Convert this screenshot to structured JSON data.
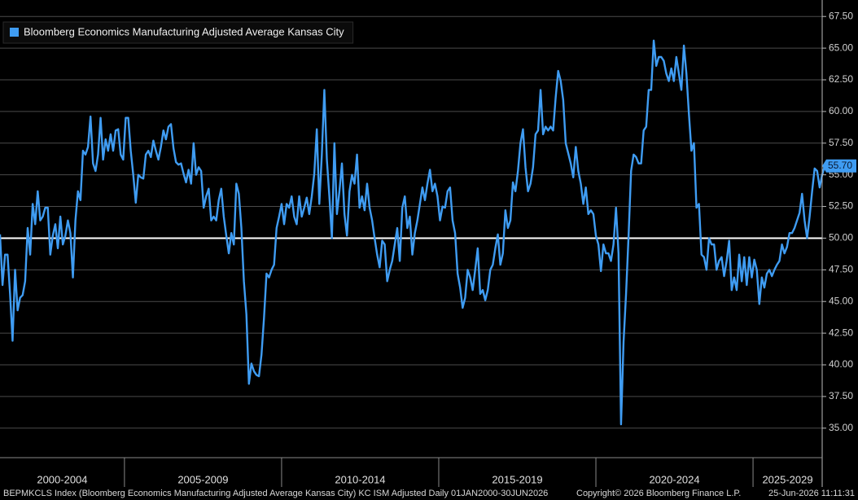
{
  "chart_data": {
    "type": "line",
    "series": [
      {
        "name": "Bloomberg Economics Manufacturing Adjusted Average Kansas City",
        "color": "#3f9cf2",
        "last_value_label": "55.70",
        "x": [
          2001.04,
          2001.12,
          2001.2,
          2001.28,
          2001.36,
          2001.44,
          2001.52,
          2001.6,
          2001.68,
          2001.76,
          2001.84,
          2001.92,
          2002,
          2002.08,
          2002.16,
          2002.24,
          2002.32,
          2002.4,
          2002.48,
          2002.56,
          2002.64,
          2002.72,
          2002.8,
          2002.88,
          2002.96,
          2003.04,
          2003.12,
          2003.2,
          2003.28,
          2003.36,
          2003.44,
          2003.52,
          2003.6,
          2003.68,
          2003.76,
          2003.84,
          2003.92,
          2004,
          2004.08,
          2004.16,
          2004.24,
          2004.32,
          2004.4,
          2004.48,
          2004.56,
          2004.64,
          2004.72,
          2004.8,
          2004.88,
          2004.96,
          2005.04,
          2005.12,
          2005.2,
          2005.28,
          2005.36,
          2005.44,
          2005.52,
          2005.6,
          2005.68,
          2005.76,
          2005.84,
          2005.92,
          2006,
          2006.08,
          2006.16,
          2006.24,
          2006.32,
          2006.4,
          2006.48,
          2006.56,
          2006.64,
          2006.72,
          2006.8,
          2006.88,
          2006.96,
          2007.04,
          2007.12,
          2007.2,
          2007.28,
          2007.36,
          2007.44,
          2007.52,
          2007.6,
          2007.68,
          2007.76,
          2007.84,
          2007.92,
          2008,
          2008.08,
          2008.16,
          2008.24,
          2008.32,
          2008.4,
          2008.48,
          2008.56,
          2008.64,
          2008.72,
          2008.8,
          2008.88,
          2008.96,
          2009.04,
          2009.12,
          2009.2,
          2009.28,
          2009.36,
          2009.44,
          2009.52,
          2009.6,
          2009.68,
          2009.76,
          2009.84,
          2009.92,
          2010,
          2010.08,
          2010.16,
          2010.24,
          2010.32,
          2010.4,
          2010.48,
          2010.56,
          2010.64,
          2010.72,
          2010.8,
          2010.88,
          2010.96,
          2011.04,
          2011.12,
          2011.2,
          2011.28,
          2011.36,
          2011.44,
          2011.52,
          2011.6,
          2011.68,
          2011.76,
          2011.84,
          2011.92,
          2012,
          2012.08,
          2012.16,
          2012.24,
          2012.32,
          2012.4,
          2012.48,
          2012.56,
          2012.64,
          2012.72,
          2012.8,
          2012.88,
          2012.96,
          2013.04,
          2013.12,
          2013.2,
          2013.28,
          2013.36,
          2013.44,
          2013.52,
          2013.6,
          2013.68,
          2013.76,
          2013.84,
          2013.92,
          2014,
          2014.08,
          2014.16,
          2014.24,
          2014.32,
          2014.4,
          2014.48,
          2014.56,
          2014.64,
          2014.72,
          2014.8,
          2014.88,
          2014.96,
          2015.04,
          2015.12,
          2015.2,
          2015.28,
          2015.36,
          2015.44,
          2015.52,
          2015.6,
          2015.68,
          2015.76,
          2015.84,
          2015.92,
          2016,
          2016.08,
          2016.16,
          2016.24,
          2016.32,
          2016.4,
          2016.48,
          2016.56,
          2016.64,
          2016.72,
          2016.8,
          2016.88,
          2016.96,
          2017.04,
          2017.12,
          2017.2,
          2017.28,
          2017.36,
          2017.44,
          2017.52,
          2017.6,
          2017.68,
          2017.76,
          2017.84,
          2017.92,
          2018,
          2018.08,
          2018.16,
          2018.24,
          2018.32,
          2018.4,
          2018.48,
          2018.56,
          2018.64,
          2018.72,
          2018.8,
          2018.88,
          2018.96,
          2019.04,
          2019.12,
          2019.2,
          2019.28,
          2019.36,
          2019.44,
          2019.52,
          2019.6,
          2019.68,
          2019.76,
          2019.84,
          2019.92,
          2020,
          2020.08,
          2020.16,
          2020.24,
          2020.32,
          2020.4,
          2020.48,
          2020.56,
          2020.64,
          2020.72,
          2020.8,
          2020.88,
          2020.96,
          2021.04,
          2021.12,
          2021.2,
          2021.28,
          2021.36,
          2021.44,
          2021.52,
          2021.6,
          2021.68,
          2021.76,
          2021.84,
          2021.92,
          2022,
          2022.08,
          2022.16,
          2022.24,
          2022.32,
          2022.4,
          2022.48,
          2022.56,
          2022.64,
          2022.72,
          2022.8,
          2022.88,
          2022.96,
          2023.04,
          2023.12,
          2023.2,
          2023.28,
          2023.36,
          2023.44,
          2023.52,
          2023.6,
          2023.68,
          2023.76,
          2023.84,
          2023.92,
          2024,
          2024.08,
          2024.16,
          2024.24,
          2024.32,
          2024.4,
          2024.48,
          2024.56,
          2024.64,
          2024.72,
          2024.8,
          2024.88,
          2024.96,
          2025.04,
          2025.12,
          2025.2,
          2025.28,
          2025.36,
          2025.44,
          2025.52,
          2025.6,
          2025.68,
          2025.76,
          2025.84,
          2025.92,
          2026,
          2026.08,
          2026.16,
          2026.24,
          2026.32,
          2026.4,
          2026.48,
          2026.56,
          2026.64,
          2026.72,
          2026.8,
          2026.88,
          2026.96,
          2027.04,
          2027.12,
          2027.2,
          2027.28
        ],
        "values": [
          50.3,
          46.3,
          48.7,
          48.7,
          45.6,
          41.9,
          47.5,
          44.3,
          45.3,
          45.5,
          46.6,
          50.8,
          48.7,
          52.7,
          51.1,
          53.7,
          51.4,
          51.7,
          52.4,
          52.4,
          48.7,
          50.2,
          51.1,
          49.2,
          51.7,
          49.5,
          50.2,
          51.4,
          50.4,
          46.9,
          51.4,
          53.7,
          53.0,
          56.9,
          56.6,
          57.2,
          59.6,
          55.9,
          55.3,
          56.6,
          59.5,
          56.2,
          57.8,
          56.9,
          58.2,
          56.9,
          58.5,
          58.6,
          56.6,
          56.2,
          59.5,
          59.5,
          56.9,
          55.0,
          52.8,
          55.0,
          54.8,
          54.7,
          56.6,
          56.9,
          56.4,
          57.7,
          56.9,
          56.2,
          57.2,
          58.5,
          57.8,
          58.8,
          59.0,
          57.1,
          56.0,
          55.8,
          55.9,
          55.1,
          54.4,
          55.4,
          54.3,
          57.5,
          55.0,
          55.6,
          55.3,
          52.4,
          53.3,
          53.9,
          51.4,
          51.7,
          51.4,
          53.0,
          53.9,
          51.7,
          50.2,
          48.8,
          50.4,
          49.5,
          54.3,
          53.5,
          50.8,
          46.6,
          44.0,
          38.5,
          40.1,
          39.5,
          39.2,
          39.1,
          40.8,
          43.7,
          47.2,
          46.9,
          47.5,
          47.9,
          50.8,
          51.7,
          52.7,
          51.1,
          52.7,
          52.4,
          53.3,
          51.7,
          51.1,
          53.3,
          51.7,
          52.4,
          53.2,
          51.9,
          53.3,
          55.1,
          58.6,
          52.7,
          56.6,
          61.7,
          56.2,
          53.3,
          50.0,
          57.5,
          51.9,
          53.7,
          55.9,
          51.9,
          50.2,
          53.7,
          55.0,
          54.3,
          56.6,
          52.4,
          53.3,
          52.2,
          54.3,
          52.4,
          51.4,
          50.0,
          48.7,
          47.7,
          49.8,
          49.5,
          46.6,
          47.5,
          48.2,
          49.5,
          50.8,
          48.2,
          52.4,
          53.3,
          50.8,
          51.7,
          48.7,
          50.4,
          51.4,
          52.7,
          54.0,
          53.0,
          54.3,
          55.4,
          53.7,
          54.3,
          53.3,
          51.4,
          52.5,
          52.4,
          53.7,
          54.0,
          51.4,
          50.4,
          47.2,
          46.1,
          44.5,
          45.3,
          47.5,
          46.9,
          45.9,
          47.5,
          49.2,
          45.6,
          45.9,
          45.1,
          45.9,
          47.5,
          47.9,
          49.2,
          50.3,
          47.9,
          48.8,
          52.2,
          50.8,
          51.4,
          54.4,
          53.7,
          55.3,
          57.5,
          58.6,
          55.6,
          53.7,
          54.3,
          55.6,
          58.2,
          58.5,
          61.7,
          58.2,
          58.8,
          58.5,
          58.8,
          58.5,
          61.1,
          63.2,
          62.4,
          60.9,
          57.5,
          56.7,
          55.9,
          54.8,
          57.2,
          55.3,
          54.3,
          52.7,
          54.0,
          51.9,
          52.2,
          51.9,
          50.2,
          49.5,
          47.4,
          49.5,
          48.8,
          48.8,
          48.2,
          49.5,
          52.4,
          48.8,
          35.3,
          41.8,
          45.6,
          50.2,
          55.3,
          56.6,
          56.4,
          55.9,
          55.9,
          58.5,
          58.8,
          61.7,
          61.7,
          65.6,
          63.6,
          64.3,
          64.3,
          64.0,
          63.0,
          62.4,
          63.4,
          62.4,
          64.3,
          63.0,
          61.7,
          65.2,
          63.0,
          59.8,
          56.9,
          57.5,
          52.4,
          52.7,
          48.7,
          48.5,
          47.5,
          50.0,
          49.5,
          49.5,
          47.5,
          48.2,
          48.5,
          47.0,
          48.2,
          49.8,
          45.9,
          46.9,
          45.9,
          48.7,
          46.6,
          48.5,
          46.3,
          48.5,
          46.9,
          48.3,
          47.5,
          44.8,
          46.9,
          46.1,
          47.2,
          47.5,
          47.0,
          47.5,
          47.9,
          48.2,
          49.5,
          48.8,
          49.3,
          50.4,
          50.4,
          50.8,
          51.4,
          52.0,
          53.5,
          51.4,
          50.0,
          51.7,
          53.7,
          55.5,
          55.3,
          54.0,
          55.0,
          55.7
        ]
      }
    ],
    "xlim": [
      2001.04,
      2027.2
    ],
    "ylim": [
      32.8,
      68.8
    ],
    "yticks": [
      {
        "value": 35,
        "label": "35.00"
      },
      {
        "value": 37.5,
        "label": "37.50"
      },
      {
        "value": 40,
        "label": "40.00"
      },
      {
        "value": 42.5,
        "label": "42.50"
      },
      {
        "value": 45,
        "label": "45.00"
      },
      {
        "value": 47.5,
        "label": "47.50"
      },
      {
        "value": 50,
        "label": "50.00"
      },
      {
        "value": 52.5,
        "label": "52.50"
      },
      {
        "value": 55,
        "label": "55.00"
      },
      {
        "value": 57.5,
        "label": "57.50"
      },
      {
        "value": 60,
        "label": "60.00"
      },
      {
        "value": 62.5,
        "label": "62.50"
      },
      {
        "value": 65,
        "label": "65.00"
      },
      {
        "value": 67.5,
        "label": "67.50"
      }
    ],
    "grid": true,
    "hline": 50,
    "legend": "upper left",
    "periods": [
      {
        "label": "2000-2004",
        "start": 2000,
        "end": 2005
      },
      {
        "label": "2005-2009",
        "start": 2005,
        "end": 2010
      },
      {
        "label": "2010-2014",
        "start": 2010,
        "end": 2015
      },
      {
        "label": "2015-2019",
        "start": 2015,
        "end": 2020
      },
      {
        "label": "2020-2024",
        "start": 2020,
        "end": 2025
      },
      {
        "label": "2025-2029",
        "start": 2025,
        "end": 2030
      }
    ]
  },
  "footer": {
    "source": "BEPMKCLS Index (Bloomberg Economics Manufacturing Adjusted Average Kansas City) KC ISM Adjusted Daily 01JAN2000-30JUN2026",
    "copyright": "Copyright© 2026 Bloomberg Finance L.P.",
    "timestamp": "25-Jun-2026 11:11:31"
  }
}
